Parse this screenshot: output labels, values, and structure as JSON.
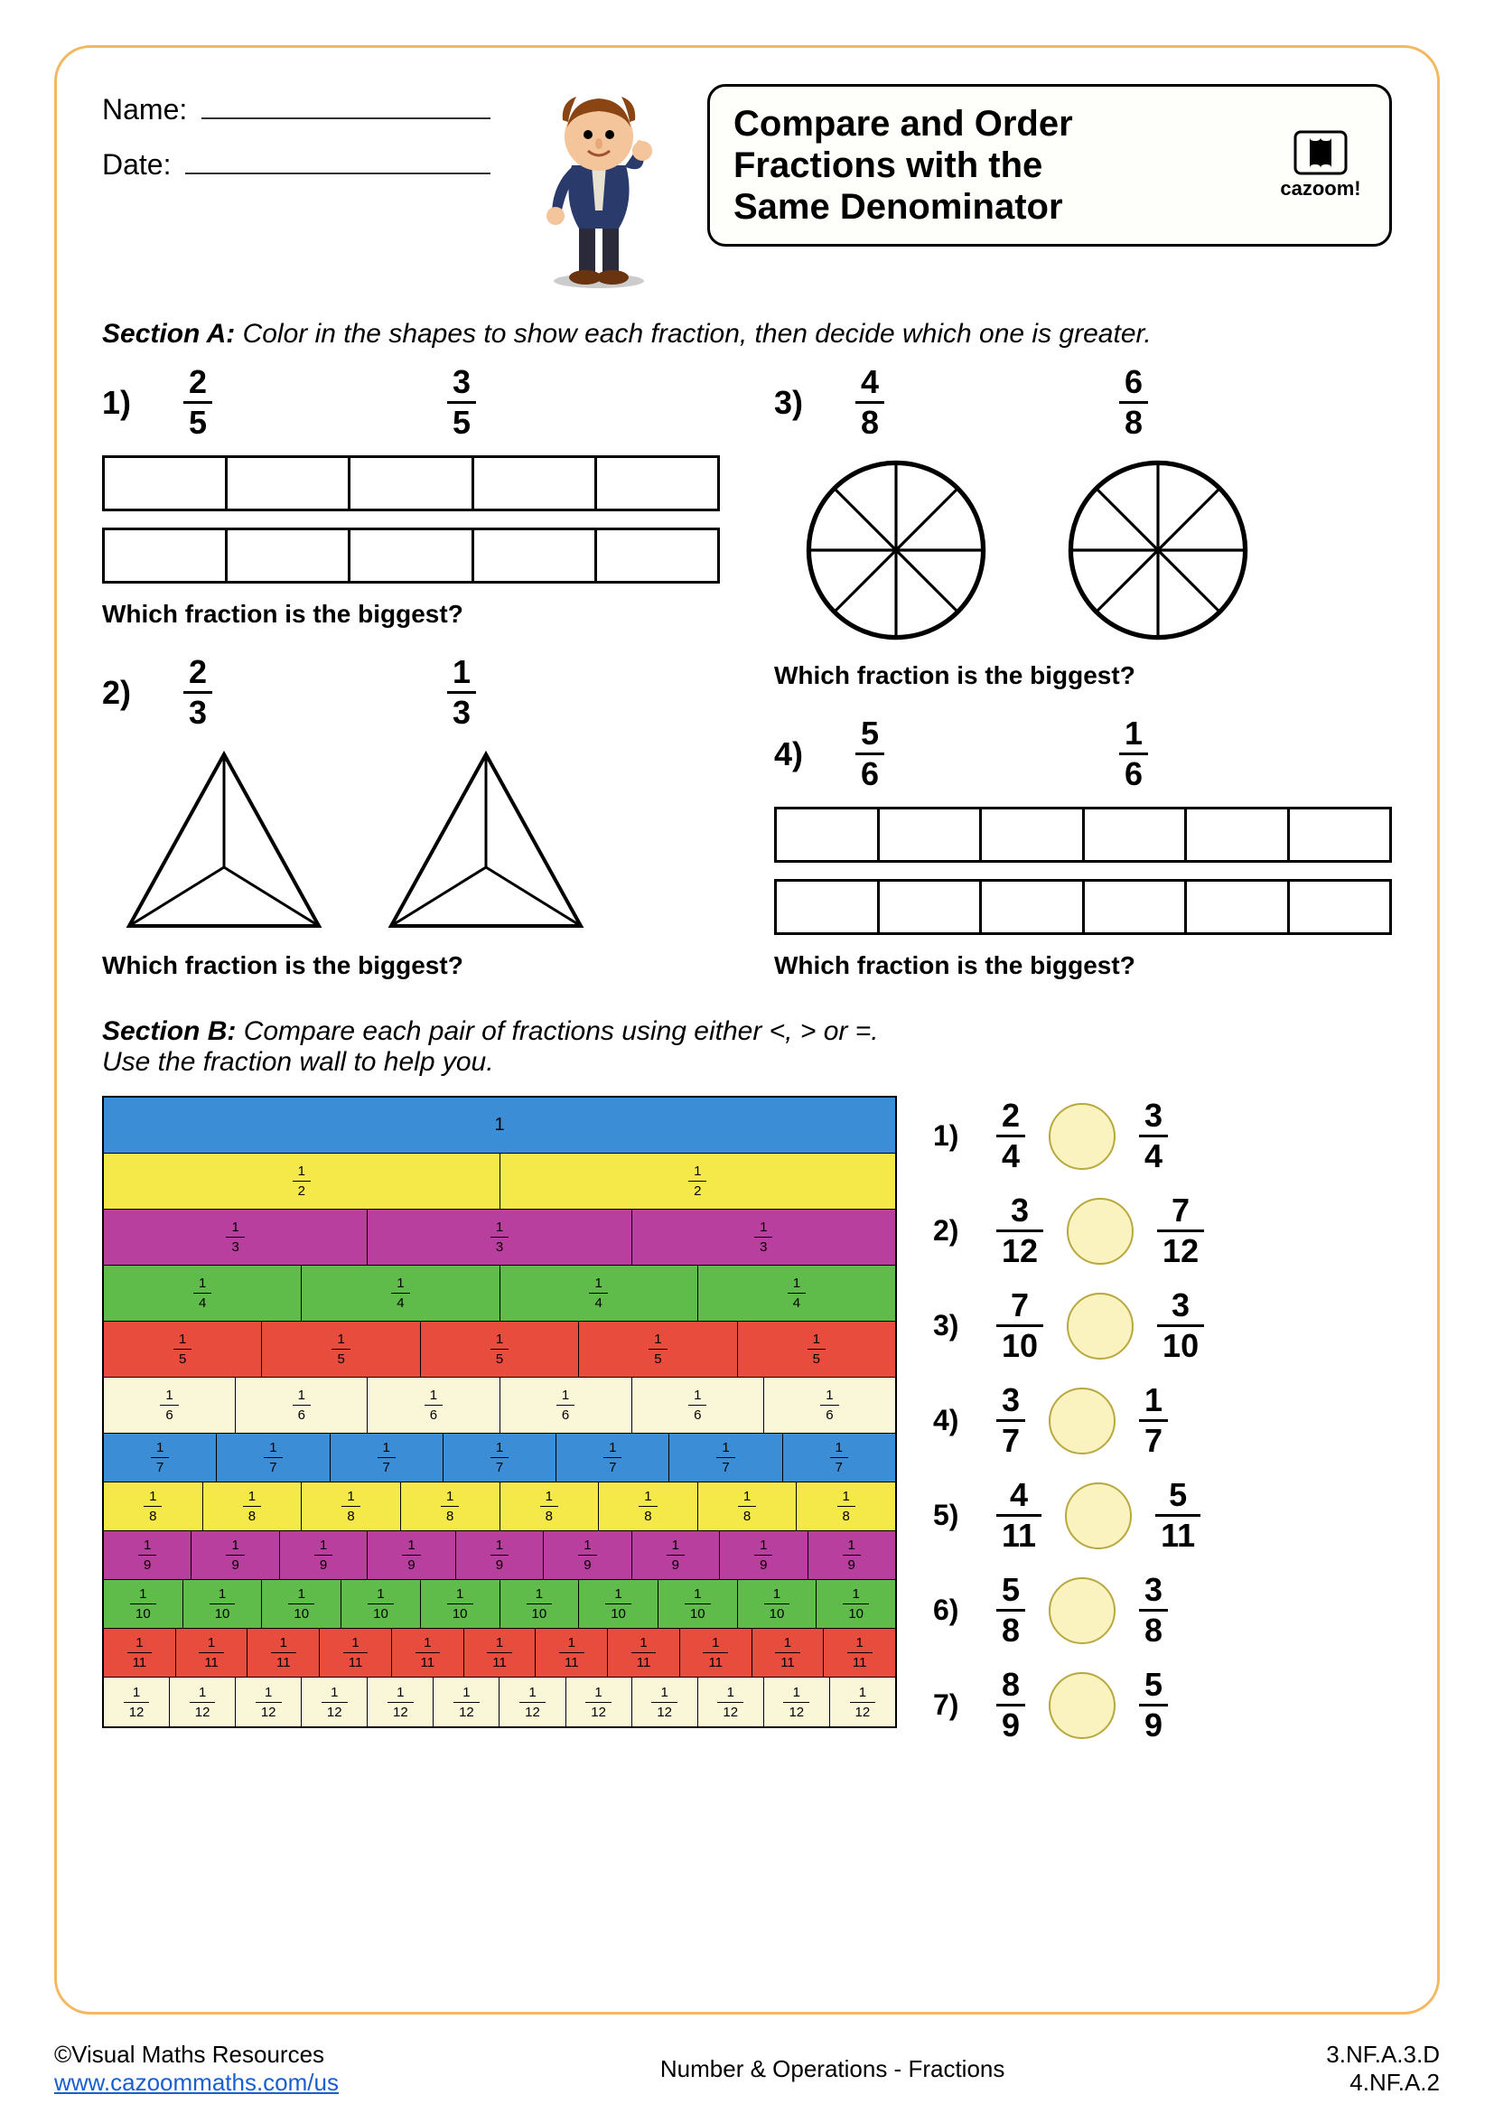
{
  "header": {
    "name_label": "Name:",
    "date_label": "Date:",
    "title_l1": "Compare and Order",
    "title_l2": "Fractions with the",
    "title_l3": "Same Denominator",
    "logo_text": "cazoom!"
  },
  "sectionA": {
    "intro_bold": "Section A:",
    "intro_text": " Color in the shapes to show each fraction, then decide which one is greater.",
    "q_label": "Which fraction is the biggest?",
    "problems": [
      {
        "num": "1)",
        "f1": {
          "n": "2",
          "d": "5"
        },
        "f2": {
          "n": "3",
          "d": "5"
        },
        "shape": "bar5"
      },
      {
        "num": "2)",
        "f1": {
          "n": "2",
          "d": "3"
        },
        "f2": {
          "n": "1",
          "d": "3"
        },
        "shape": "tri"
      },
      {
        "num": "3)",
        "f1": {
          "n": "4",
          "d": "8"
        },
        "f2": {
          "n": "6",
          "d": "8"
        },
        "shape": "circle8"
      },
      {
        "num": "4)",
        "f1": {
          "n": "5",
          "d": "6"
        },
        "f2": {
          "n": "1",
          "d": "6"
        },
        "shape": "bar6"
      }
    ]
  },
  "sectionB": {
    "intro_bold": "Section B:",
    "intro_l1": " Compare each pair of fractions using either <, > or =.",
    "intro_l2": "Use the fraction wall to help you.",
    "wall": {
      "rows": [
        {
          "parts": 1,
          "color": "#3b8ed6",
          "label": {
            "n": "1",
            "d": ""
          }
        },
        {
          "parts": 2,
          "color": "#f5e94a",
          "label": {
            "n": "1",
            "d": "2"
          }
        },
        {
          "parts": 3,
          "color": "#b93f9e",
          "label": {
            "n": "1",
            "d": "3"
          }
        },
        {
          "parts": 4,
          "color": "#5fbb4a",
          "label": {
            "n": "1",
            "d": "4"
          }
        },
        {
          "parts": 5,
          "color": "#e84c3d",
          "label": {
            "n": "1",
            "d": "5"
          }
        },
        {
          "parts": 6,
          "color": "#faf6d8",
          "label": {
            "n": "1",
            "d": "6"
          }
        },
        {
          "parts": 7,
          "color": "#3b8ed6",
          "label": {
            "n": "1",
            "d": "7"
          }
        },
        {
          "parts": 8,
          "color": "#f5e94a",
          "label": {
            "n": "1",
            "d": "8"
          }
        },
        {
          "parts": 9,
          "color": "#b93f9e",
          "label": {
            "n": "1",
            "d": "9"
          }
        },
        {
          "parts": 10,
          "color": "#5fbb4a",
          "label": {
            "n": "1",
            "d": "10"
          }
        },
        {
          "parts": 11,
          "color": "#e84c3d",
          "label": {
            "n": "1",
            "d": "11"
          }
        },
        {
          "parts": 12,
          "color": "#faf6d8",
          "label": {
            "n": "1",
            "d": "12"
          }
        }
      ]
    },
    "compare": [
      {
        "num": "1)",
        "f1": {
          "n": "2",
          "d": "4"
        },
        "f2": {
          "n": "3",
          "d": "4"
        }
      },
      {
        "num": "2)",
        "f1": {
          "n": "3",
          "d": "12"
        },
        "f2": {
          "n": "7",
          "d": "12"
        }
      },
      {
        "num": "3)",
        "f1": {
          "n": "7",
          "d": "10"
        },
        "f2": {
          "n": "3",
          "d": "10"
        }
      },
      {
        "num": "4)",
        "f1": {
          "n": "3",
          "d": "7"
        },
        "f2": {
          "n": "1",
          "d": "7"
        }
      },
      {
        "num": "5)",
        "f1": {
          "n": "4",
          "d": "11"
        },
        "f2": {
          "n": "5",
          "d": "11"
        }
      },
      {
        "num": "6)",
        "f1": {
          "n": "5",
          "d": "8"
        },
        "f2": {
          "n": "3",
          "d": "8"
        }
      },
      {
        "num": "7)",
        "f1": {
          "n": "8",
          "d": "9"
        },
        "f2": {
          "n": "5",
          "d": "9"
        }
      }
    ]
  },
  "footer": {
    "copyright": "©Visual Maths Resources",
    "url": "www.cazoommaths.com/us",
    "center": "Number & Operations - Fractions",
    "std1": "3.NF.A.3.D",
    "std2": "4.NF.A.2"
  },
  "style": {
    "border_color": "#f4b860",
    "circle_fill": "#faf3c0",
    "circle_border": "#b8a840"
  }
}
